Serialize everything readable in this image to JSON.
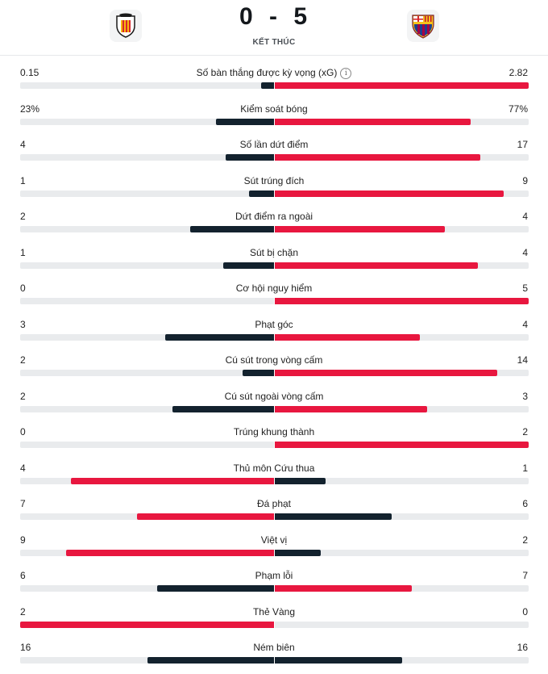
{
  "match": {
    "score_home": "0",
    "score_sep": "-",
    "score_away": "5",
    "status": "KẾT THÚC",
    "home_logo": "valencia-crest-icon",
    "away_logo": "barcelona-crest-icon"
  },
  "colors": {
    "leader": "#e8173f",
    "trailer": "#13222e",
    "track": "#e9ebed"
  },
  "stats": [
    {
      "label": "Số bàn thắng được kỳ vọng (xG)",
      "home": "0.15",
      "away": "2.82",
      "home_share": 0.05,
      "away_share": 1.0,
      "home_color": "trailer",
      "away_color": "leader",
      "info": true
    },
    {
      "label": "Kiểm soát bóng",
      "home": "23%",
      "away": "77%",
      "home_share": 0.23,
      "away_share": 0.77,
      "home_color": "trailer",
      "away_color": "leader"
    },
    {
      "label": "Số lần dứt điểm",
      "home": "4",
      "away": "17",
      "home_share": 0.19,
      "away_share": 0.81,
      "home_color": "trailer",
      "away_color": "leader"
    },
    {
      "label": "Sút trúng đích",
      "home": "1",
      "away": "9",
      "home_share": 0.1,
      "away_share": 0.9,
      "home_color": "trailer",
      "away_color": "leader"
    },
    {
      "label": "Dứt điểm ra ngoài",
      "home": "2",
      "away": "4",
      "home_share": 0.33,
      "away_share": 0.67,
      "home_color": "trailer",
      "away_color": "leader"
    },
    {
      "label": "Sút bị chặn",
      "home": "1",
      "away": "4",
      "home_share": 0.2,
      "away_share": 0.8,
      "home_color": "trailer",
      "away_color": "leader"
    },
    {
      "label": "Cơ hội nguy hiểm",
      "home": "0",
      "away": "5",
      "home_share": 0.0,
      "away_share": 1.0,
      "home_color": "trailer",
      "away_color": "leader"
    },
    {
      "label": "Phạt góc",
      "home": "3",
      "away": "4",
      "home_share": 0.43,
      "away_share": 0.57,
      "home_color": "trailer",
      "away_color": "leader"
    },
    {
      "label": "Cú sút trong vòng cấm",
      "home": "2",
      "away": "14",
      "home_share": 0.125,
      "away_share": 0.875,
      "home_color": "trailer",
      "away_color": "leader"
    },
    {
      "label": "Cú sút ngoài vòng cấm",
      "home": "2",
      "away": "3",
      "home_share": 0.4,
      "away_share": 0.6,
      "home_color": "trailer",
      "away_color": "leader"
    },
    {
      "label": "Trúng khung thành",
      "home": "0",
      "away": "2",
      "home_share": 0.0,
      "away_share": 1.0,
      "home_color": "trailer",
      "away_color": "leader"
    },
    {
      "label": "Thủ môn Cứu thua",
      "home": "4",
      "away": "1",
      "home_share": 0.8,
      "away_share": 0.2,
      "home_color": "leader",
      "away_color": "trailer"
    },
    {
      "label": "Đá phạt",
      "home": "7",
      "away": "6",
      "home_share": 0.54,
      "away_share": 0.46,
      "home_color": "leader",
      "away_color": "trailer"
    },
    {
      "label": "Việt vị",
      "home": "9",
      "away": "2",
      "home_share": 0.82,
      "away_share": 0.18,
      "home_color": "leader",
      "away_color": "trailer"
    },
    {
      "label": "Phạm lỗi",
      "home": "6",
      "away": "7",
      "home_share": 0.46,
      "away_share": 0.54,
      "home_color": "trailer",
      "away_color": "leader"
    },
    {
      "label": "Thẻ Vàng",
      "home": "2",
      "away": "0",
      "home_share": 1.0,
      "away_share": 0.0,
      "home_color": "leader",
      "away_color": "trailer"
    },
    {
      "label": "Ném biên",
      "home": "16",
      "away": "16",
      "home_share": 0.5,
      "away_share": 0.5,
      "home_color": "trailer",
      "away_color": "trailer"
    }
  ]
}
